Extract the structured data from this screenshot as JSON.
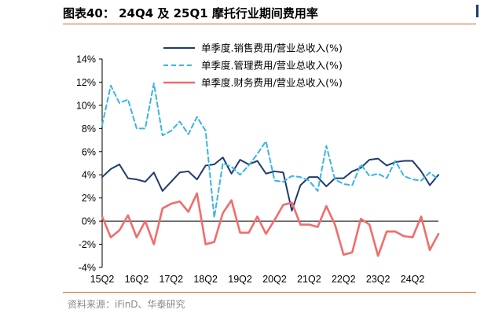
{
  "header": {
    "title": "图表40： 24Q4 及 25Q1 摩托行业期间费用率"
  },
  "footer": {
    "source": "资料来源：iFinD、华泰研究"
  },
  "chart_data": {
    "type": "line",
    "title": "",
    "xlabel": "",
    "ylabel": "",
    "ylim": [
      -4,
      14
    ],
    "y_ticks": [
      "-4%",
      "-2%",
      "0%",
      "2%",
      "4%",
      "6%",
      "8%",
      "10%",
      "12%",
      "14%"
    ],
    "x_tick_labels": [
      "15Q2",
      "16Q2",
      "17Q2",
      "18Q2",
      "19Q2",
      "20Q2",
      "21Q2",
      "22Q2",
      "23Q2",
      "24Q2"
    ],
    "x_tick_positions": [
      0,
      4,
      8,
      12,
      16,
      20,
      24,
      28,
      32,
      36
    ],
    "x_count": 40,
    "legend_position": "top-right",
    "grid": false,
    "series": [
      {
        "name": "单季度.销售费用/营业总收入(%)",
        "color": "#1f3b6e",
        "dash": "solid",
        "values": [
          3.8,
          4.5,
          4.9,
          3.7,
          3.6,
          3.4,
          4.2,
          2.6,
          3.4,
          4.2,
          4.3,
          3.6,
          4.8,
          4.9,
          5.5,
          4.1,
          5.3,
          4.9,
          5.2,
          4.1,
          4.3,
          4.2,
          0.9,
          3.1,
          3.8,
          3.8,
          3.0,
          3.7,
          3.7,
          4.3,
          4.6,
          5.3,
          5.4,
          4.8,
          5.1,
          5.2,
          5.2,
          4.3,
          3.1,
          4.0
        ]
      },
      {
        "name": "单季度.管理费用/营业总收入(%)",
        "color": "#3ab4e6",
        "dash": "dashed",
        "values": [
          8.3,
          11.7,
          10.2,
          10.5,
          8.0,
          8.0,
          11.9,
          7.4,
          7.8,
          8.6,
          7.5,
          9.0,
          7.8,
          0.3,
          5.0,
          4.7,
          4.0,
          4.8,
          5.8,
          6.9,
          3.5,
          3.4,
          3.9,
          3.8,
          3.5,
          2.6,
          6.5,
          3.6,
          3.2,
          3.1,
          4.9,
          3.9,
          4.1,
          3.7,
          5.2,
          3.9,
          3.6,
          3.5,
          4.2,
          3.6
        ]
      },
      {
        "name": "单季度.财务费用/营业总收入(%)",
        "color": "#f26c6c",
        "dash": "solid",
        "values": [
          0.4,
          -1.4,
          -0.8,
          0.5,
          -1.4,
          0.0,
          -2.0,
          1.1,
          1.5,
          1.7,
          0.8,
          2.4,
          -2.0,
          -1.8,
          0.7,
          1.8,
          -1.0,
          -1.0,
          0.4,
          -1.1,
          0.1,
          1.4,
          1.6,
          -0.3,
          -0.3,
          -0.5,
          1.3,
          -0.3,
          -2.9,
          -2.7,
          0.2,
          -0.3,
          -3.0,
          -0.9,
          -0.9,
          -1.3,
          -1.4,
          0.4,
          -2.5,
          -1.1
        ]
      }
    ]
  }
}
